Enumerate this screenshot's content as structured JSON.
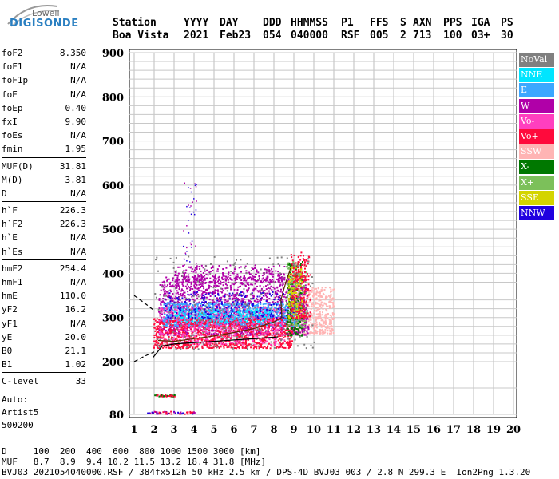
{
  "logo": {
    "top": "Lowell",
    "bottom": "DIGISONDE"
  },
  "header": {
    "labels": [
      "Station",
      "YYYY",
      "DAY",
      "DDD",
      "HHMMSS",
      "P1",
      "FFS",
      "S",
      "AXN",
      "PPS",
      "IGA",
      "PS"
    ],
    "values": [
      "Boa Vista",
      "2021",
      "Feb23",
      "054",
      "040000",
      "RSF",
      "005",
      "2",
      "713",
      "100",
      "03+",
      "30"
    ]
  },
  "params_group1": [
    {
      "label": "foF2",
      "value": "8.350"
    },
    {
      "label": "foF1",
      "value": "N/A"
    },
    {
      "label": "foF1p",
      "value": "N/A"
    },
    {
      "label": "foE",
      "value": "N/A"
    },
    {
      "label": "foEp",
      "value": "0.40"
    },
    {
      "label": "fxI",
      "value": "9.90"
    },
    {
      "label": "foEs",
      "value": "N/A"
    },
    {
      "label": "fmin",
      "value": "1.95"
    }
  ],
  "params_group2": [
    {
      "label": "MUF(D)",
      "value": "31.81"
    },
    {
      "label": "M(D)",
      "value": "3.81"
    },
    {
      "label": "D",
      "value": "N/A"
    }
  ],
  "params_group3": [
    {
      "label": "h`F",
      "value": "226.3"
    },
    {
      "label": "h`F2",
      "value": "226.3"
    },
    {
      "label": "h`E",
      "value": "N/A"
    },
    {
      "label": "h`Es",
      "value": "N/A"
    }
  ],
  "params_group4": [
    {
      "label": "hmF2",
      "value": "254.4"
    },
    {
      "label": "hmF1",
      "value": "N/A"
    },
    {
      "label": "hmE",
      "value": "110.0"
    },
    {
      "label": "yF2",
      "value": "16.2"
    },
    {
      "label": "yF1",
      "value": "N/A"
    },
    {
      "label": "yE",
      "value": "20.0"
    },
    {
      "label": "B0",
      "value": "21.1"
    },
    {
      "label": "B1",
      "value": "1.02"
    }
  ],
  "params_group5": [
    {
      "label": "C-level",
      "value": "33"
    }
  ],
  "auto": {
    "line1": "Auto:",
    "line2": "Artist5",
    "line3": "500200"
  },
  "footer": {
    "line1": "D     100  200  400  600  800 1000 1500 3000 [km]",
    "line2": "MUF   8.7  8.9  9.4 10.2 11.5 13.2 18.4 31.8 [MHz]",
    "line3": "BVJ03_2021054040000.RSF / 384fx512h 50 kHz 2.5 km / DPS-4D BVJ03 003 / 2.8 N 299.3 E  Ion2Png 1.3.20"
  },
  "legend": [
    {
      "label": "NoVal",
      "color": "#808080"
    },
    {
      "label": "NNE",
      "color": "#00e5ff"
    },
    {
      "label": "E",
      "color": "#3ba7ff"
    },
    {
      "label": "W",
      "color": "#b000a8"
    },
    {
      "label": "Vo-",
      "color": "#ff3fbf"
    },
    {
      "label": "Vo+",
      "color": "#ff0a3c"
    },
    {
      "label": "SSW",
      "color": "#ffb4b4"
    },
    {
      "label": "X-",
      "color": "#007800"
    },
    {
      "label": "X+",
      "color": "#7cc05a"
    },
    {
      "label": "SSE",
      "color": "#d4d400"
    },
    {
      "label": "NNW",
      "color": "#2000e0"
    }
  ],
  "chart_data": {
    "type": "scatter",
    "title": "",
    "xlabel": "",
    "ylabel": "",
    "xlim": [
      1,
      20
    ],
    "ylim": [
      80,
      900
    ],
    "x_ticks": [
      "1",
      "2",
      "3",
      "4",
      "5",
      "6",
      "7",
      "8",
      "9",
      "10",
      "11",
      "12",
      "13",
      "14",
      "15",
      "16",
      "17",
      "18",
      "19",
      "20"
    ],
    "y_ticks": [
      "80",
      "200",
      "300",
      "400",
      "500",
      "600",
      "700",
      "800",
      "900"
    ],
    "grid": true,
    "trace_profile": [
      [
        1.95,
        210
      ],
      [
        2.4,
        235
      ],
      [
        3,
        240
      ],
      [
        4,
        243
      ],
      [
        5,
        246
      ],
      [
        6,
        249
      ],
      [
        7,
        252
      ],
      [
        8.2,
        256
      ]
    ],
    "dashed_upper": [
      [
        1,
        350
      ],
      [
        1.6,
        330
      ],
      [
        2,
        316
      ]
    ],
    "dashed_lower": [
      [
        1,
        200
      ],
      [
        1.5,
        212
      ],
      [
        2,
        222
      ]
    ],
    "dense_regions": [
      {
        "direction": "W",
        "f": [
          2.2,
          9.6
        ],
        "h": [
          270,
          380
        ]
      },
      {
        "direction": "E",
        "f": [
          2.5,
          9.2
        ],
        "h": [
          285,
          330
        ]
      },
      {
        "direction": "Vo+",
        "f": [
          1.95,
          8.8
        ],
        "h": [
          230,
          300
        ]
      },
      {
        "direction": "SSW",
        "f": [
          8.8,
          11
        ],
        "h": [
          270,
          370
        ]
      }
    ]
  }
}
